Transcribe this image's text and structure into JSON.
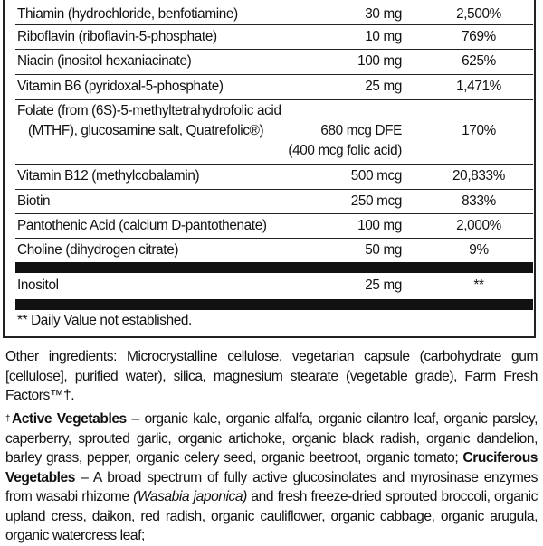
{
  "nutrients": [
    {
      "name": "Thiamin (hydrochloride, benfotiamine)",
      "amount": "30 mg",
      "dv": "2,500%"
    },
    {
      "name": "Riboflavin (riboflavin-5-phosphate)",
      "amount": "10 mg",
      "dv": "769%"
    },
    {
      "name": "Niacin (inositol hexaniacinate)",
      "amount": "100 mg",
      "dv": "625%"
    },
    {
      "name": "Vitamin B6 (pyridoxal-5-phosphate)",
      "amount": "25 mg",
      "dv": "1,471%"
    },
    {
      "name_line1": "Folate (from (6S)-5-methyltetrahydrofolic acid",
      "name_line2": "(MTHF), glucosamine salt, Quatrefolic®)",
      "amount": "680 mcg DFE",
      "amount_line2": "(400 mcg folic acid)",
      "dv": "170%"
    },
    {
      "name": "Vitamin B12 (methylcobalamin)",
      "amount": "500 mcg",
      "dv": "20,833%"
    },
    {
      "name": "Biotin",
      "amount": "250 mcg",
      "dv": "833%"
    },
    {
      "name": "Pantothenic Acid (calcium D-pantothenate)",
      "amount": "100 mg",
      "dv": "2,000%"
    },
    {
      "name": "Choline (dihydrogen citrate)",
      "amount": "50 mg",
      "dv": "9%"
    },
    {
      "name": "Inositol",
      "amount": "25 mg",
      "dv": "**"
    }
  ],
  "footnote": "** Daily Value not established.",
  "other_ingredients": "Other ingredients: Microcrystalline cellulose, vegetarian capsule (carbohydrate gum [cellulose], purified water), silica, magnesium stearate (vegetable grade), Farm Fresh Factors™†.",
  "blend": {
    "dagger": "†",
    "active_title": "Active Vegetables",
    "active_text": " – organic kale, organic alfalfa, organic cilantro leaf, organic parsley, caperberry, sprouted garlic, organic artichoke, organic black radish, organic dandelion, barley grass, pepper, organic celery seed, organic beetroot, organic tomato; ",
    "cruciferous_title": "Cruciferous Vegetables",
    "cruciferous_text": " – A broad spectrum of fully active glucosinolates and myrosinase enzymes from wasabi rhizome ",
    "latin": "(Wasabia japonica)",
    "cruciferous_text2": " and fresh freeze-dried sprouted broccoli, organic upland cress, daikon, red radish, organic cauliflower, organic cabbage, organic arugula, organic watercress leaf;"
  }
}
